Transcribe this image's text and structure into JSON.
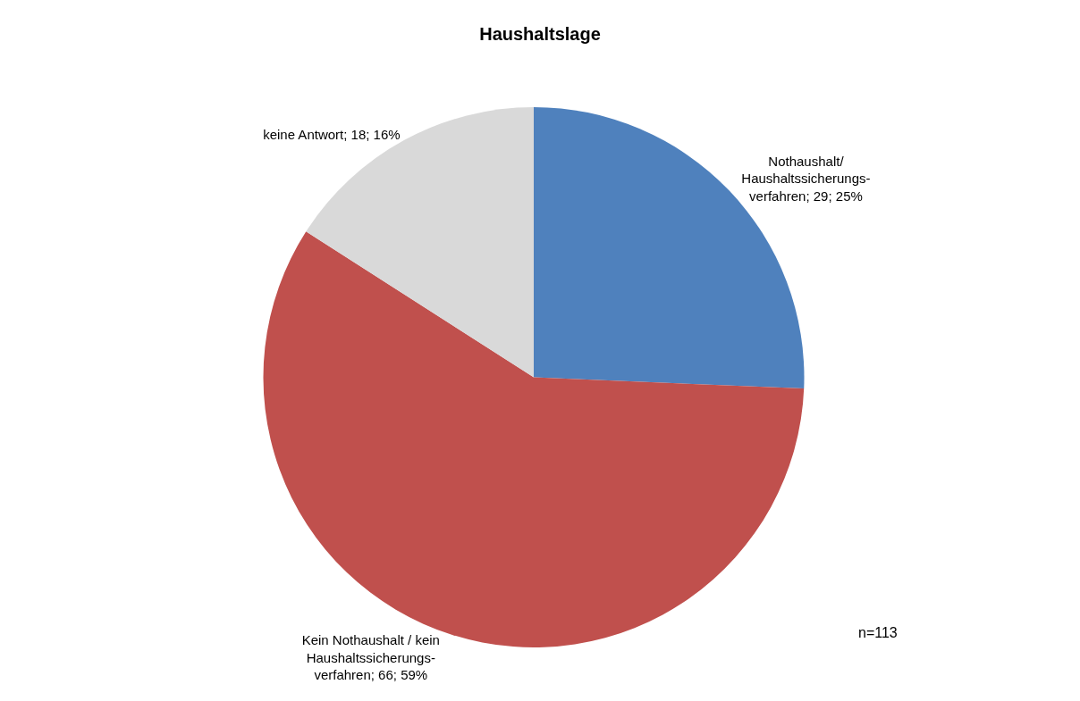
{
  "chart_data": {
    "type": "pie",
    "title": "Haushaltslage",
    "categories": [
      "Nothaushalt/ Haushaltssicherungs-verfahren",
      "Kein Nothaushalt / kein Haushaltssicherungs-verfahren",
      "keine Antwort"
    ],
    "values": [
      29,
      66,
      18
    ],
    "value_labels": [
      "29; 25%",
      "66; 59%",
      "18; 16%"
    ],
    "colors": [
      "#4f81bd",
      "#c0504d",
      "#d9d9d9"
    ],
    "legend": false,
    "annotations": [
      "n=113"
    ]
  }
}
